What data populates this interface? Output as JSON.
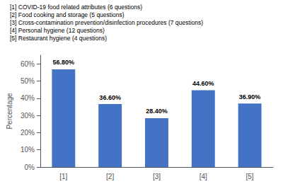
{
  "chart_data": {
    "type": "bar",
    "annotations": [
      "[1] COVID-19 food related attributes (6 questions)",
      "[2] Food cooking and storage (5 questions)",
      "[3] Cross-contamination prevention/disinfection procedures (7 questions)",
      "[4] Personal hygiene (12 questions)",
      "[5] Restaurant hygiene (4 questions)"
    ],
    "categories": [
      "[1]",
      "[2]",
      "[3]",
      "[4]",
      "[5]"
    ],
    "values": [
      56.8,
      36.6,
      28.4,
      44.6,
      36.9
    ],
    "value_labels": [
      "56.80%",
      "36.60%",
      "28.40%",
      "44.60%",
      "36.90%"
    ],
    "data_labels": true,
    "color": "#4472C4",
    "ylabel": "Percentage",
    "ylim": [
      0,
      65
    ],
    "yticks": [
      {
        "value": 0,
        "label": "0%"
      },
      {
        "value": 10,
        "label": "10%"
      },
      {
        "value": 20,
        "label": "20%"
      },
      {
        "value": 30,
        "label": "30%"
      },
      {
        "value": 40,
        "label": "40%"
      },
      {
        "value": 50,
        "label": "50%"
      },
      {
        "value": 60,
        "label": "60%"
      }
    ],
    "grid": false
  }
}
